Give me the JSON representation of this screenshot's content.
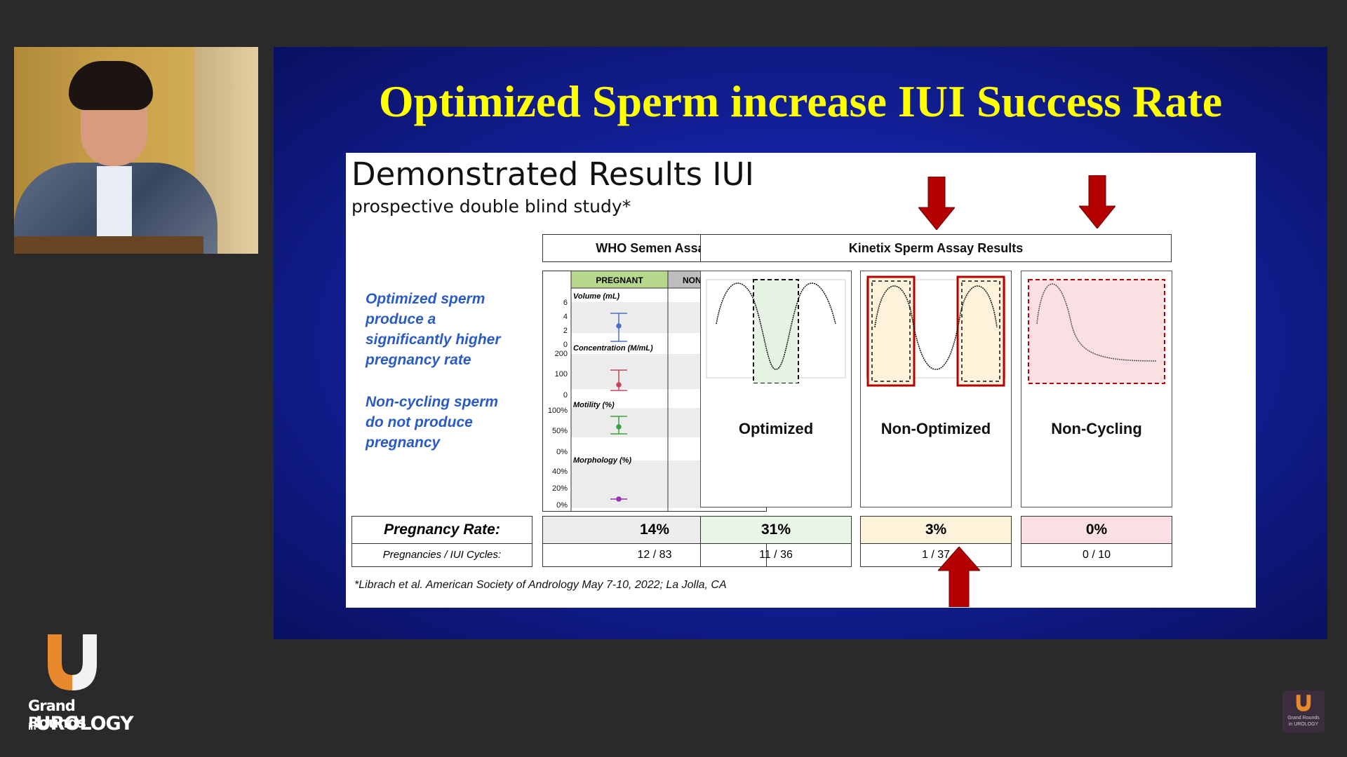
{
  "slide": {
    "title": "Optimized Sperm increase IUI Success Rate",
    "heading": "Demonstrated Results IUI",
    "subheading": "prospective double blind study*",
    "notes": [
      [
        "Optimized sperm",
        "produce a",
        "significantly higher",
        "pregnancy rate"
      ],
      [
        "Non-cycling sperm",
        "do not produce",
        "pregnancy"
      ]
    ],
    "who_header": "WHO Semen Assay",
    "kinetix_header": "Kinetix Sperm Assay Results",
    "who_columns": [
      "PREGNANT",
      "NON-PREGNANT"
    ],
    "who_params": [
      {
        "label": "Volume (mL)",
        "ticks": [
          "6",
          "4",
          "2",
          "0"
        ],
        "color": "#4a6fc2"
      },
      {
        "label": "Concentration (M/mL)",
        "ticks": [
          "200",
          "100",
          "0"
        ],
        "color": "#c8455a"
      },
      {
        "label": "Motility (%)",
        "ticks": [
          "100%",
          "50%",
          "0%"
        ],
        "color": "#3aa23c"
      },
      {
        "label": "Morphology (%)",
        "ticks": [
          "40%",
          "20%",
          "0%"
        ],
        "color": "#9a2fb8"
      }
    ],
    "kinetix_panels": [
      {
        "label": "Optimized"
      },
      {
        "label": "Non-Optimized"
      },
      {
        "label": "Non-Cycling"
      }
    ],
    "row_labels": {
      "rate": "Pregnancy Rate:",
      "cycles": "Pregnancies / IUI Cycles:"
    },
    "rates": [
      "14%",
      "31%",
      "3%",
      "0%"
    ],
    "cycles": [
      "12 / 83",
      "11 / 36",
      "1 / 37",
      "0 / 10"
    ],
    "rate_colors": [
      "#ededed",
      "#e9f5e6",
      "#fdf3da",
      "#fbe0e3"
    ],
    "footnote": "*Librach et al. American Society of Andrology May 7-10, 2022; La Jolla, CA"
  },
  "branding": {
    "line1": "Grand Rounds",
    "line2_prefix": "in",
    "line2": "UROLOGY",
    "mini1": "Grand Rounds",
    "mini2": "in UROLOGY"
  },
  "colors": {
    "title": "#ffff00",
    "note_text": "#2a5bc4",
    "arrow": "#b40000",
    "logo_orange": "#e8892e"
  }
}
